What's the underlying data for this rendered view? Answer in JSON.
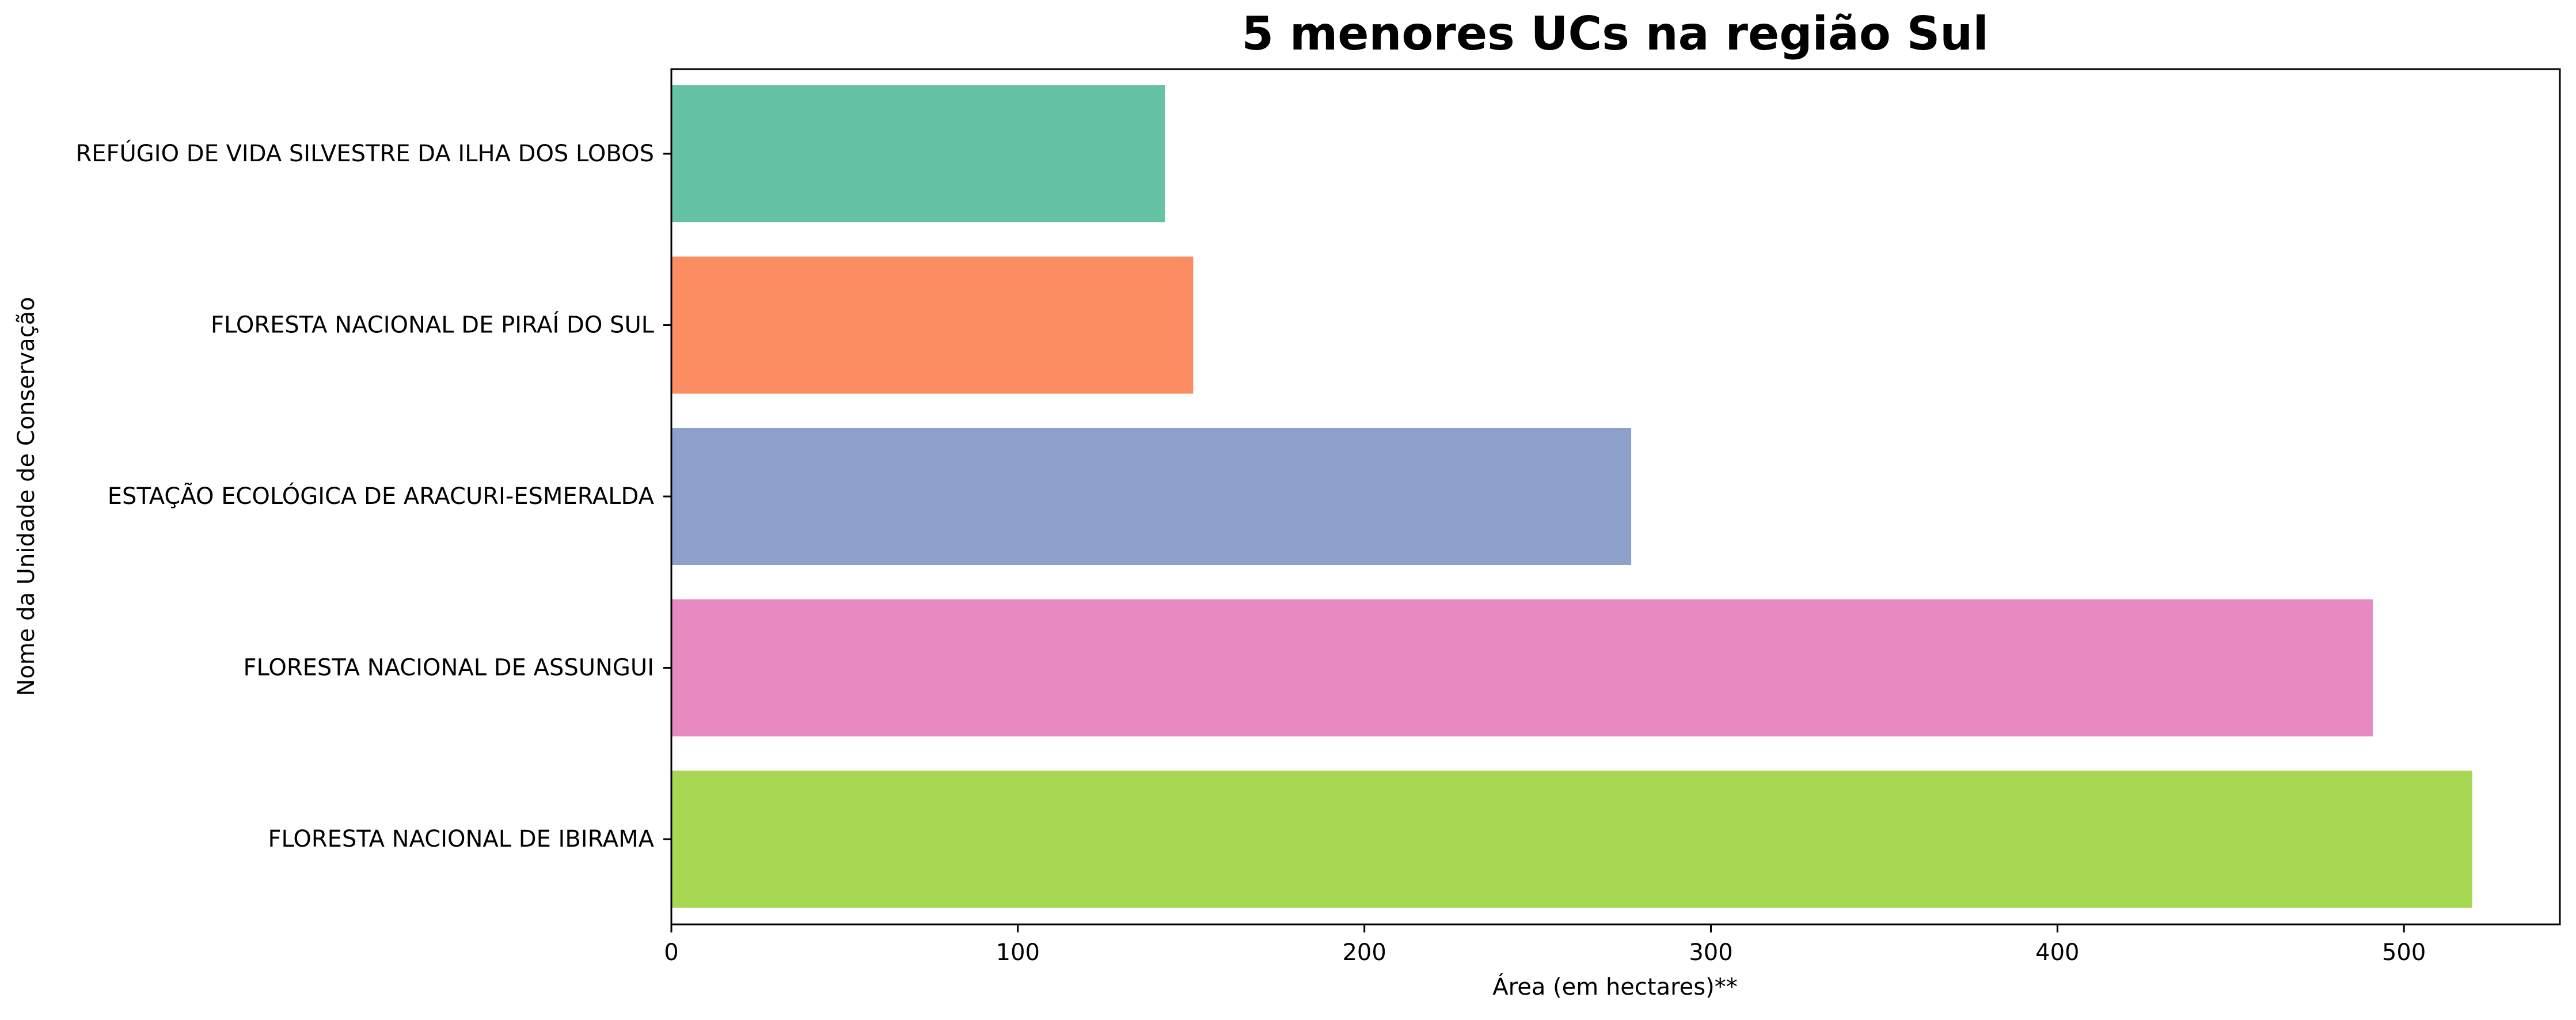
{
  "chart_data": {
    "type": "bar",
    "orientation": "horizontal",
    "title": "5 menores UCs na região Sul",
    "xlabel": "Área (em hectares)**",
    "ylabel": "Nome da Unidade de Conservação",
    "categories": [
      "REFÚGIO DE VIDA SILVESTRE DA ILHA DOS LOBOS",
      "FLORESTA NACIONAL DE PIRAÍ DO SUL",
      "ESTAÇÃO ECOLÓGICA DE ARACURI-ESMERALDA",
      "FLORESTA NACIONAL DE ASSUNGUI",
      "FLORESTA NACIONAL DE IBIRAMA"
    ],
    "values": [
      142.4,
      150.6,
      277.0,
      491.0,
      519.7
    ],
    "colors": [
      "#66c2a5",
      "#fc8d62",
      "#8da0cb",
      "#e78ac3",
      "#a6d854"
    ],
    "xlim": [
      0,
      545
    ],
    "xticks": [
      0,
      100,
      200,
      300,
      400,
      500
    ],
    "xtick_labels": [
      "0",
      "100",
      "200",
      "300",
      "400",
      "500"
    ],
    "grid": false,
    "legend": "none"
  }
}
